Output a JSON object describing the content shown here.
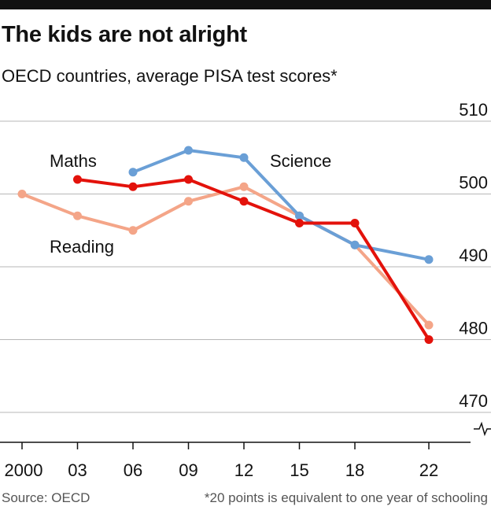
{
  "title": "The kids are not alright",
  "subtitle": "OECD countries, average PISA test scores*",
  "source": "Source: OECD",
  "footnote": "*20 points is equivalent to one year of schooling",
  "chart_data": {
    "type": "line",
    "title": "The kids are not alright",
    "subtitle": "OECD countries, average PISA test scores*",
    "x": [
      2000,
      2003,
      2006,
      2009,
      2012,
      2015,
      2018,
      2022
    ],
    "x_tick_labels": [
      "2000",
      "03",
      "06",
      "09",
      "12",
      "15",
      "18",
      "22"
    ],
    "y_ticks": [
      510,
      500,
      490,
      480,
      470
    ],
    "y_tick_labels": [
      "510",
      "500",
      "490",
      "480",
      "470"
    ],
    "ylim": [
      468,
      510
    ],
    "y_axis_side": "right",
    "y_axis_break": true,
    "grid": true,
    "xlabel": "",
    "ylabel": "",
    "series": [
      {
        "name": "Reading",
        "color": "#f4a588",
        "x": [
          2000,
          2003,
          2006,
          2009,
          2012,
          2015,
          2018,
          2022
        ],
        "values": [
          500,
          497,
          495,
          499,
          501,
          497,
          493,
          482
        ]
      },
      {
        "name": "Science",
        "color": "#6a9fd6",
        "x": [
          2006,
          2009,
          2012,
          2015,
          2018,
          2022
        ],
        "values": [
          503,
          506,
          505,
          497,
          493,
          491
        ]
      },
      {
        "name": "Maths",
        "color": "#e3120b",
        "x": [
          2003,
          2006,
          2009,
          2012,
          2015,
          2018,
          2022
        ],
        "values": [
          502,
          501,
          502,
          499,
          496,
          496,
          480
        ]
      }
    ],
    "annotations": [
      "Maths",
      "Science",
      "Reading"
    ]
  }
}
